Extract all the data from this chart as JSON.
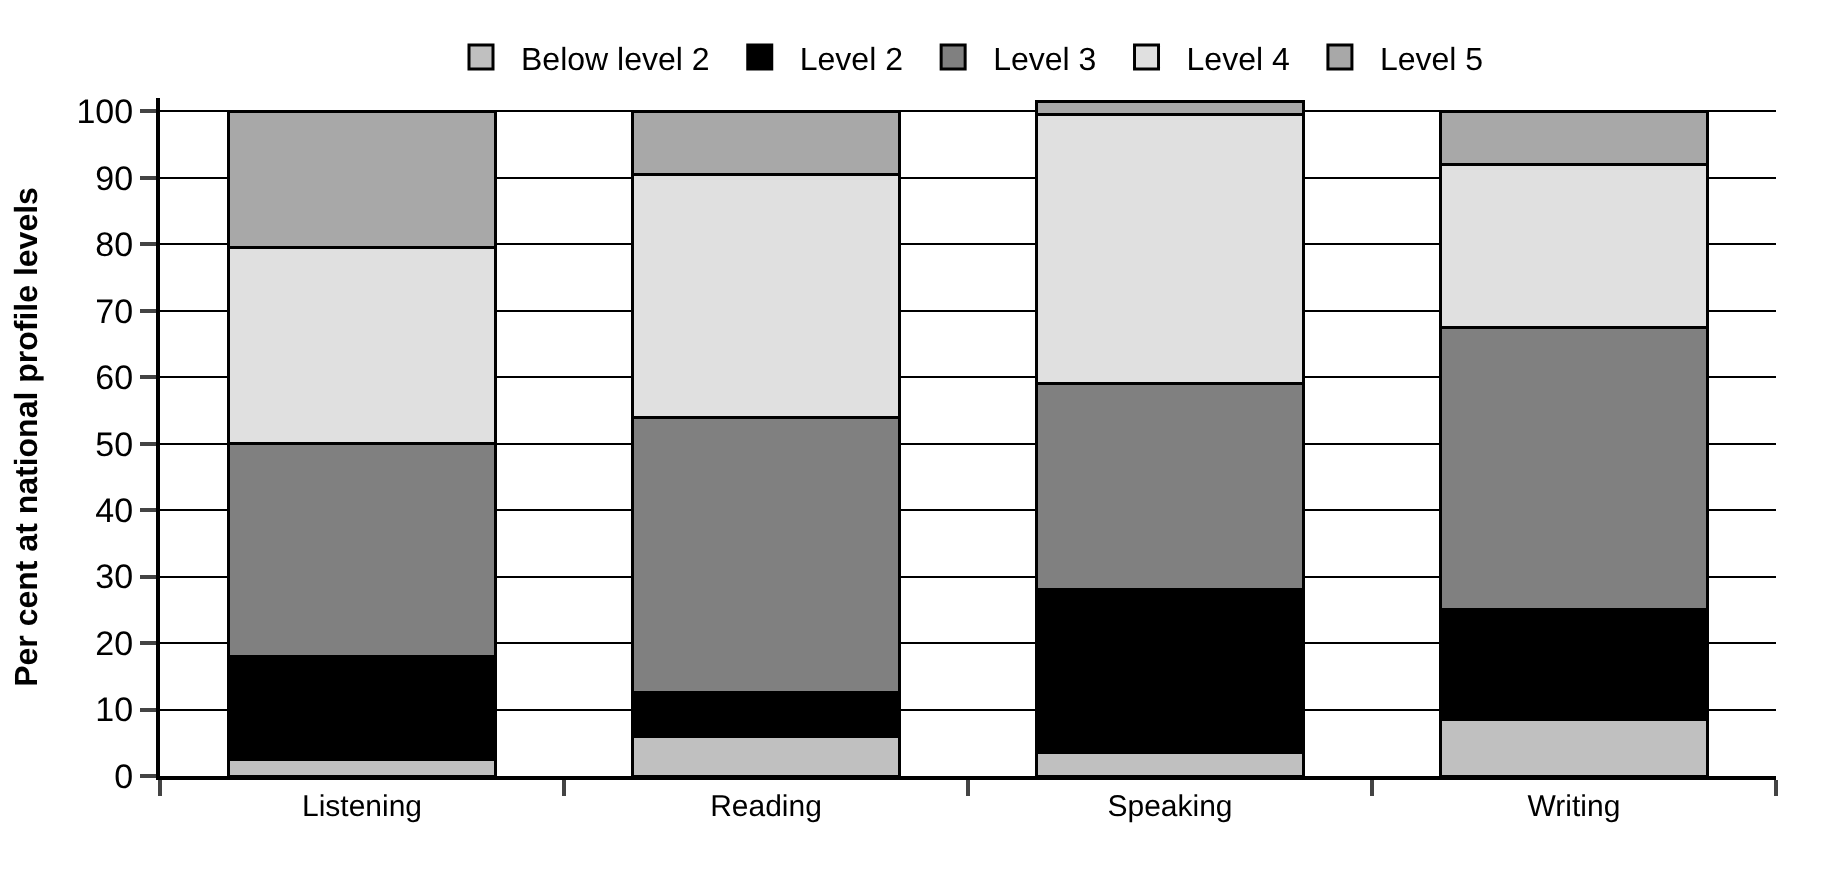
{
  "chart_data": {
    "type": "bar",
    "stacked": true,
    "ylabel": "Per cent at national profile levels",
    "categories": [
      "Listening",
      "Reading",
      "Speaking",
      "Writing"
    ],
    "series": [
      {
        "name": "Below level 2",
        "color": "#c0c0c0",
        "values": [
          2.5,
          6,
          3.5,
          8.5
        ]
      },
      {
        "name": "Level 2",
        "color": "#000000",
        "values": [
          15.5,
          6.5,
          24.5,
          16.5
        ]
      },
      {
        "name": "Level 3",
        "color": "#808080",
        "values": [
          32,
          41.5,
          31,
          42.5
        ]
      },
      {
        "name": "Level 4",
        "color": "#e0e0e0",
        "values": [
          29.5,
          36.5,
          40.5,
          24.5
        ]
      },
      {
        "name": "Level 5",
        "color": "#a8a8a8",
        "values": [
          20.5,
          9.5,
          2,
          8
        ]
      }
    ],
    "ylim": [
      0,
      102
    ],
    "yticks": [
      0,
      10,
      20,
      30,
      40,
      50,
      60,
      70,
      80,
      90,
      100
    ],
    "grid": "y",
    "legend": "top"
  }
}
